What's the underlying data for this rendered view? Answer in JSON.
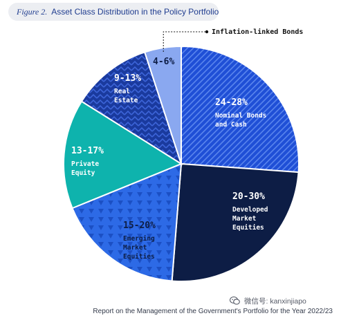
{
  "figure": {
    "number": "Figure 2.",
    "title": "Asset Class Distribution in the Policy Portfolio"
  },
  "chart_data": {
    "type": "pie",
    "title": "Asset Class Distribution in the Policy Portfolio",
    "unit": "%",
    "slices": [
      {
        "key": "nominal_bonds_cash",
        "range": "24-28%",
        "label_lines": [
          "Nominal Bonds",
          "and Cash"
        ],
        "value": 26,
        "color": "#1f4fd6",
        "pattern": "diagonal-stripes"
      },
      {
        "key": "developed_market_equities",
        "range": "20-30%",
        "label_lines": [
          "Developed",
          "Market",
          "Equities"
        ],
        "value": 25,
        "color": "#0d1d45",
        "pattern": "solid"
      },
      {
        "key": "emerging_market_equities",
        "range": "15-20%",
        "label_lines": [
          "Emerging",
          "Market",
          "Equities"
        ],
        "value": 17.5,
        "color": "#2d6ae6",
        "pattern": "triangles"
      },
      {
        "key": "private_equity",
        "range": "13-17%",
        "label_lines": [
          "Private",
          "Equity"
        ],
        "value": 15,
        "color": "#0eb3ad",
        "pattern": "solid"
      },
      {
        "key": "real_estate",
        "range": "9-13%",
        "label_lines": [
          "Real",
          "Estate"
        ],
        "value": 11,
        "color": "#1a3a9e",
        "pattern": "chevrons"
      },
      {
        "key": "inflation_linked_bonds",
        "range": "4-6%",
        "label_lines": [],
        "value": 5,
        "color": "#8aa8f0",
        "pattern": "solid"
      }
    ],
    "callout": {
      "slice": "inflation_linked_bonds",
      "text": "Inflation-linked Bonds"
    },
    "start_angle_deg": 0,
    "direction": "clockwise"
  },
  "watermark": {
    "text": "微信号: kanxinjiapo",
    "icon": "wechat-icon"
  },
  "footer": {
    "text": "Report on the Management of the Government's Portfolio for the Year 2022/23"
  }
}
